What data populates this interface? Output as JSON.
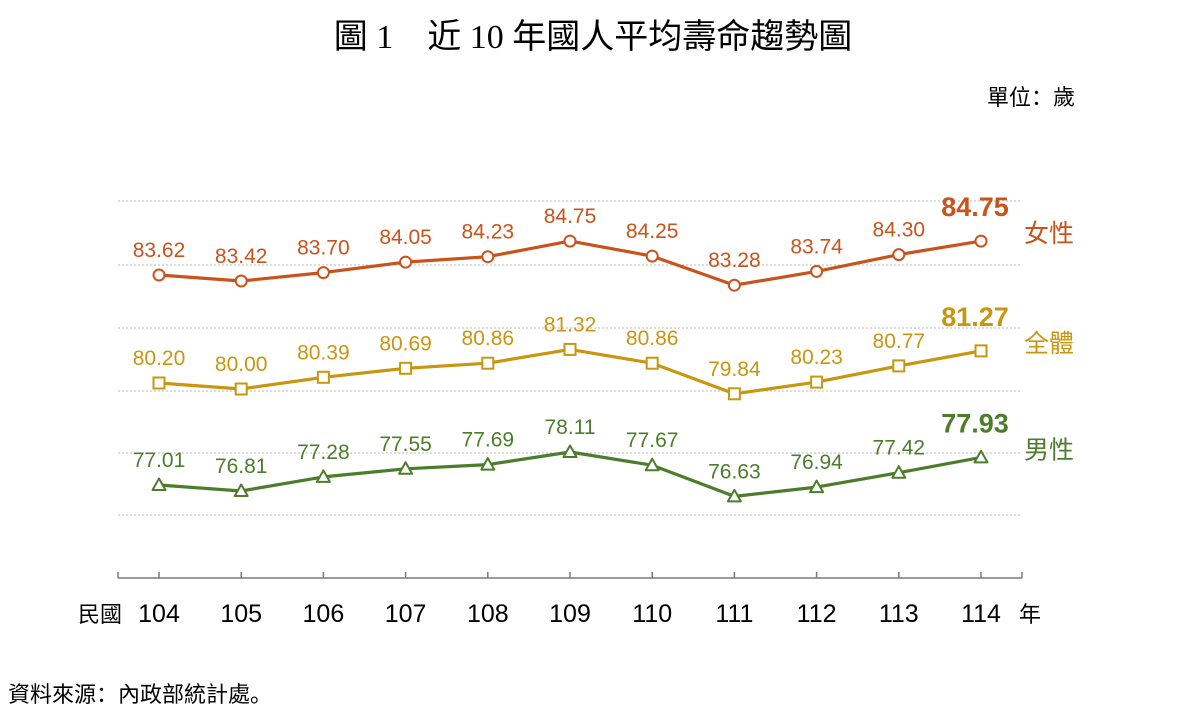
{
  "chart_data": {
    "type": "line",
    "title": "圖 1　近 10 年國人平均壽命趨勢圖",
    "unit_label": "單位：歲",
    "x_prefix": "民國",
    "x_suffix": "年",
    "categories": [
      "104",
      "105",
      "106",
      "107",
      "108",
      "109",
      "110",
      "111",
      "112",
      "113",
      "114"
    ],
    "series": [
      {
        "name": "女性",
        "color": "#c8531b",
        "marker": "circle",
        "values": [
          83.62,
          83.42,
          83.7,
          84.05,
          84.23,
          84.75,
          84.25,
          83.28,
          83.74,
          84.3,
          84.75
        ]
      },
      {
        "name": "全體",
        "color": "#c8960f",
        "marker": "square",
        "values": [
          80.2,
          80.0,
          80.39,
          80.69,
          80.86,
          81.32,
          80.86,
          79.84,
          80.23,
          80.77,
          81.27
        ]
      },
      {
        "name": "男性",
        "color": "#4b7d2a",
        "marker": "triangle",
        "values": [
          77.01,
          76.81,
          77.28,
          77.55,
          77.69,
          78.11,
          77.67,
          76.63,
          76.94,
          77.42,
          77.93
        ]
      }
    ],
    "grid": true,
    "source": "資料來源：內政部統計處。"
  }
}
